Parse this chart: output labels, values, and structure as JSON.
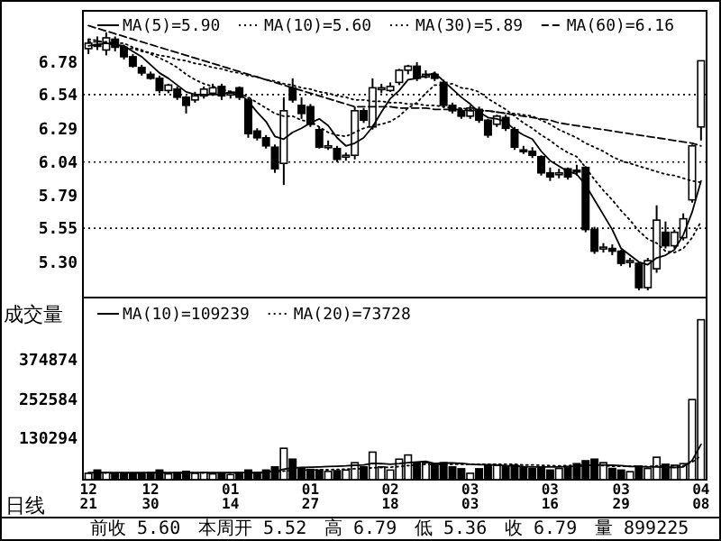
{
  "chart_data": [
    {
      "type": "candlestick",
      "color": "#000000",
      "legend": "top",
      "tick_labels": "y",
      "ylim": [
        5.05,
        7.16
      ],
      "yticks": [
        {
          "value": 5.3,
          "label": "5.30"
        },
        5.55,
        5.79,
        6.04,
        6.29,
        6.54,
        6.78
      ],
      "ref_lines": [
        {
          "axis": "y",
          "value": 6.54,
          "line_style": "dotted",
          "color": "#000000"
        },
        {
          "axis": "y",
          "value": 6.04,
          "line_style": "dotted",
          "color": "#000000"
        },
        {
          "axis": "y",
          "value": 5.55,
          "line_style": "dotted",
          "color": "#000000"
        }
      ],
      "categories": [
        null,
        null,
        null,
        null,
        null,
        null,
        null,
        null,
        null,
        null,
        null,
        null,
        null,
        null,
        null,
        null,
        null,
        null,
        null,
        null,
        null,
        null,
        null,
        null,
        null,
        null,
        null,
        null,
        null,
        null,
        null,
        null,
        null,
        null,
        null,
        null,
        null,
        null,
        null,
        null,
        null,
        null,
        null,
        null,
        null,
        null,
        null,
        null,
        null,
        null,
        null,
        null,
        null,
        null,
        null,
        null,
        null,
        null,
        null,
        null,
        null,
        null,
        null,
        null,
        null,
        null,
        null,
        null,
        null,
        null
      ],
      "ohlc": [
        [
          6.88,
          6.95,
          6.84,
          6.92
        ],
        [
          6.91,
          6.97,
          6.87,
          6.9
        ],
        [
          6.87,
          7.0,
          6.83,
          6.96
        ],
        [
          6.95,
          6.97,
          6.86,
          6.89
        ],
        [
          6.89,
          6.91,
          6.8,
          6.82
        ],
        [
          6.82,
          6.84,
          6.74,
          6.75
        ],
        [
          6.74,
          6.76,
          6.68,
          6.7
        ],
        [
          6.69,
          6.71,
          6.65,
          6.66
        ],
        [
          6.66,
          6.68,
          6.55,
          6.57
        ],
        [
          6.57,
          6.62,
          6.55,
          6.61
        ],
        [
          6.58,
          6.6,
          6.5,
          6.52
        ],
        [
          6.52,
          6.53,
          6.4,
          6.46
        ],
        [
          6.5,
          6.56,
          6.48,
          6.53
        ],
        [
          6.53,
          6.6,
          6.51,
          6.58
        ],
        [
          6.55,
          6.62,
          6.53,
          6.59
        ],
        [
          6.6,
          6.62,
          6.5,
          6.53
        ],
        [
          6.54,
          6.57,
          6.51,
          6.55
        ],
        [
          6.59,
          6.6,
          6.5,
          6.52
        ],
        [
          6.5,
          6.52,
          6.22,
          6.25
        ],
        [
          6.27,
          6.29,
          6.2,
          6.22
        ],
        [
          6.22,
          6.24,
          6.14,
          6.16
        ],
        [
          6.15,
          6.17,
          5.96,
          5.99
        ],
        [
          6.03,
          6.52,
          5.87,
          6.42
        ],
        [
          6.59,
          6.66,
          6.48,
          6.5
        ],
        [
          6.46,
          6.52,
          6.36,
          6.4
        ],
        [
          6.45,
          6.47,
          6.3,
          6.32
        ],
        [
          6.28,
          6.3,
          6.14,
          6.15
        ],
        [
          6.16,
          6.2,
          6.13,
          6.16
        ],
        [
          6.14,
          6.16,
          6.04,
          6.06
        ],
        [
          6.08,
          6.11,
          6.05,
          6.09
        ],
        [
          6.09,
          6.45,
          6.06,
          6.42
        ],
        [
          6.42,
          6.44,
          6.33,
          6.35
        ],
        [
          6.3,
          6.66,
          6.28,
          6.59
        ],
        [
          6.58,
          6.62,
          6.55,
          6.59
        ],
        [
          6.57,
          6.63,
          6.56,
          6.6
        ],
        [
          6.63,
          6.73,
          6.61,
          6.72
        ],
        [
          6.72,
          6.76,
          6.69,
          6.75
        ],
        [
          6.75,
          6.78,
          6.64,
          6.66
        ],
        [
          6.67,
          6.72,
          6.66,
          6.69
        ],
        [
          6.69,
          6.71,
          6.64,
          6.66
        ],
        [
          6.63,
          6.65,
          6.44,
          6.46
        ],
        [
          6.46,
          6.48,
          6.4,
          6.42
        ],
        [
          6.42,
          6.44,
          6.36,
          6.38
        ],
        [
          6.38,
          6.46,
          6.36,
          6.44
        ],
        [
          6.43,
          6.45,
          6.33,
          6.35
        ],
        [
          6.35,
          6.36,
          6.22,
          6.24
        ],
        [
          6.32,
          6.39,
          6.3,
          6.38
        ],
        [
          6.37,
          6.39,
          6.27,
          6.29
        ],
        [
          6.28,
          6.3,
          6.13,
          6.15
        ],
        [
          6.13,
          6.16,
          6.1,
          6.12
        ],
        [
          6.12,
          6.15,
          6.07,
          6.09
        ],
        [
          6.08,
          6.09,
          5.94,
          5.96
        ],
        [
          5.96,
          6.0,
          5.9,
          5.93
        ],
        [
          5.95,
          5.99,
          5.92,
          5.96
        ],
        [
          5.99,
          6.0,
          5.91,
          5.93
        ],
        [
          5.98,
          6.02,
          5.94,
          5.97
        ],
        [
          6.0,
          6.01,
          5.52,
          5.54
        ],
        [
          5.54,
          5.56,
          5.36,
          5.38
        ],
        [
          5.4,
          5.44,
          5.37,
          5.41
        ],
        [
          5.4,
          5.43,
          5.35,
          5.38
        ],
        [
          5.38,
          5.39,
          5.27,
          5.29
        ],
        [
          5.3,
          5.33,
          5.26,
          5.31
        ],
        [
          5.29,
          5.3,
          5.09,
          5.11
        ],
        [
          5.11,
          5.33,
          5.09,
          5.31
        ],
        [
          5.25,
          5.72,
          5.22,
          5.61
        ],
        [
          5.52,
          5.6,
          5.4,
          5.42
        ],
        [
          5.42,
          5.54,
          5.4,
          5.52
        ],
        [
          5.48,
          5.66,
          5.46,
          5.62
        ],
        [
          5.76,
          6.17,
          5.74,
          6.16
        ],
        [
          6.3,
          6.79,
          6.2,
          6.79
        ]
      ],
      "series": [
        {
          "type": "line",
          "name": "MA(5)=5.90",
          "color": "#000000",
          "line_style": "solid",
          "values": [
            6.9,
            6.91,
            6.92,
            6.91,
            6.9,
            6.86,
            6.82,
            6.76,
            6.7,
            6.66,
            6.61,
            6.56,
            6.54,
            6.54,
            6.54,
            6.54,
            6.56,
            6.55,
            6.49,
            6.41,
            6.34,
            6.23,
            6.21,
            6.26,
            6.29,
            6.33,
            6.36,
            6.31,
            6.22,
            6.16,
            6.18,
            6.22,
            6.3,
            6.41,
            6.51,
            6.57,
            6.65,
            6.66,
            6.68,
            6.7,
            6.64,
            6.58,
            6.52,
            6.47,
            6.41,
            6.37,
            6.36,
            6.34,
            6.28,
            6.24,
            6.21,
            6.12,
            6.05,
            6.01,
            5.97,
            5.95,
            5.87,
            5.76,
            5.65,
            5.54,
            5.4,
            5.35,
            5.3,
            5.28,
            5.33,
            5.35,
            5.39,
            5.5,
            5.67,
            5.9
          ]
        },
        {
          "type": "line",
          "name": "MA(10)=5.60",
          "color": "#000000",
          "line_style": "dotted",
          "values": [
            6.93,
            6.93,
            6.93,
            6.92,
            6.92,
            6.89,
            6.87,
            6.84,
            6.81,
            6.78,
            6.74,
            6.69,
            6.65,
            6.62,
            6.6,
            6.58,
            6.56,
            6.55,
            6.52,
            6.48,
            6.44,
            6.4,
            6.38,
            6.38,
            6.35,
            6.34,
            6.3,
            6.26,
            6.24,
            6.23,
            6.26,
            6.29,
            6.31,
            6.32,
            6.34,
            6.38,
            6.44,
            6.48,
            6.55,
            6.61,
            6.61,
            6.62,
            6.59,
            6.58,
            6.56,
            6.51,
            6.47,
            6.43,
            6.38,
            6.33,
            6.29,
            6.24,
            6.2,
            6.15,
            6.11,
            6.08,
            6.0,
            5.91,
            5.83,
            5.76,
            5.68,
            5.61,
            5.53,
            5.47,
            5.44,
            5.38,
            5.37,
            5.4,
            5.48,
            5.6
          ]
        },
        {
          "type": "line",
          "name": "MA(30)=5.89",
          "color": "#000000",
          "line_style": "dotted",
          "values": [
            6.95,
            6.94,
            6.92,
            6.91,
            6.89,
            6.88,
            6.86,
            6.85,
            6.83,
            6.82,
            6.8,
            6.79,
            6.77,
            6.76,
            6.74,
            6.73,
            6.71,
            6.7,
            6.68,
            6.67,
            6.65,
            6.64,
            6.62,
            6.61,
            6.59,
            6.58,
            6.56,
            6.55,
            6.53,
            6.52,
            6.5,
            6.5,
            6.49,
            6.49,
            6.48,
            6.48,
            6.47,
            6.47,
            6.46,
            6.46,
            6.45,
            6.44,
            6.44,
            6.43,
            6.42,
            6.42,
            6.41,
            6.4,
            6.4,
            6.39,
            6.38,
            6.35,
            6.32,
            6.28,
            6.25,
            6.22,
            6.18,
            6.15,
            6.12,
            6.08,
            6.05,
            6.03,
            6.01,
            5.99,
            5.97,
            5.95,
            5.94,
            5.92,
            5.9,
            5.89
          ]
        },
        {
          "type": "line",
          "name": "MA(60)=6.16",
          "color": "#000000",
          "line_style": "dashed",
          "values": [
            7.05,
            7.03,
            7.01,
            6.99,
            6.97,
            6.95,
            6.93,
            6.91,
            6.89,
            6.87,
            6.85,
            6.83,
            6.81,
            6.79,
            6.77,
            6.75,
            6.73,
            6.71,
            6.69,
            6.67,
            6.65,
            6.63,
            6.61,
            6.59,
            6.57,
            6.55,
            6.53,
            6.51,
            6.49,
            6.47,
            6.45,
            6.45,
            6.45,
            6.45,
            6.45,
            6.44,
            6.44,
            6.44,
            6.44,
            6.43,
            6.43,
            6.43,
            6.43,
            6.42,
            6.42,
            6.42,
            6.41,
            6.4,
            6.39,
            6.38,
            6.37,
            6.36,
            6.35,
            6.33,
            6.32,
            6.31,
            6.3,
            6.29,
            6.28,
            6.27,
            6.26,
            6.25,
            6.24,
            6.23,
            6.22,
            6.21,
            6.2,
            6.19,
            6.18,
            6.16
          ]
        }
      ]
    },
    {
      "type": "bar",
      "ylabel": "成交量",
      "legend": "top",
      "ylim": [
        0,
        562600
      ],
      "yticks": [
        130294,
        252584,
        374874
      ],
      "annotations": [
        "日线",
        "前收 5.60",
        "本周开 5.52",
        "高 6.79",
        "低 5.36",
        "收 6.79",
        "量 899225"
      ],
      "categories": [
        "12\n21",
        null,
        null,
        null,
        null,
        null,
        null,
        "12\n30",
        null,
        null,
        null,
        null,
        null,
        null,
        null,
        null,
        "01\n14",
        null,
        null,
        null,
        null,
        null,
        null,
        null,
        null,
        "01\n27",
        null,
        null,
        null,
        null,
        null,
        null,
        null,
        null,
        "02\n18",
        null,
        null,
        null,
        null,
        null,
        null,
        null,
        null,
        "03\n03",
        null,
        null,
        null,
        null,
        null,
        null,
        null,
        null,
        "03\n16",
        null,
        null,
        null,
        null,
        null,
        null,
        null,
        "03\n29",
        null,
        null,
        null,
        null,
        null,
        null,
        null,
        null,
        "04\n08"
      ],
      "values": [
        20000,
        30000,
        22000,
        18000,
        20000,
        18000,
        20000,
        22000,
        30000,
        18000,
        22000,
        26000,
        20000,
        22000,
        18000,
        20000,
        16000,
        22000,
        30000,
        22000,
        30000,
        40000,
        98000,
        64000,
        36000,
        32000,
        30000,
        26000,
        28000,
        30000,
        53000,
        40000,
        86000,
        40000,
        30000,
        64000,
        77000,
        53000,
        53000,
        50000,
        53000,
        40000,
        34000,
        20000,
        34000,
        45000,
        45000,
        40000,
        45000,
        40000,
        35000,
        40000,
        30000,
        35000,
        40000,
        50000,
        59000,
        64000,
        53000,
        35000,
        30000,
        25000,
        42000,
        35000,
        70000,
        48000,
        45000,
        50000,
        250000,
        499000
      ],
      "colors": [
        "#ffffff",
        "#000000",
        "#ffffff",
        "#000000",
        "#000000",
        "#000000",
        "#000000",
        "#000000",
        "#000000",
        "#ffffff",
        "#000000",
        "#000000",
        "#ffffff",
        "#ffffff",
        "#ffffff",
        "#000000",
        "#ffffff",
        "#000000",
        "#000000",
        "#000000",
        "#000000",
        "#000000",
        "#ffffff",
        "#000000",
        "#000000",
        "#000000",
        "#000000",
        "#ffffff",
        "#000000",
        "#ffffff",
        "#ffffff",
        "#000000",
        "#ffffff",
        "#ffffff",
        "#ffffff",
        "#ffffff",
        "#ffffff",
        "#000000",
        "#ffffff",
        "#000000",
        "#000000",
        "#000000",
        "#000000",
        "#ffffff",
        "#000000",
        "#000000",
        "#ffffff",
        "#000000",
        "#000000",
        "#000000",
        "#000000",
        "#000000",
        "#000000",
        "#ffffff",
        "#000000",
        "#000000",
        "#000000",
        "#000000",
        "#ffffff",
        "#000000",
        "#000000",
        "#ffffff",
        "#000000",
        "#ffffff",
        "#ffffff",
        "#000000",
        "#ffffff",
        "#ffffff",
        "#ffffff",
        "#ffffff"
      ],
      "series": [
        {
          "type": "line",
          "name": "MA(10)=109239",
          "color": "#000000",
          "line_style": "solid",
          "values": [
            22000,
            22000,
            22000,
            22000,
            22000,
            22000,
            22000,
            22000,
            22000,
            22000,
            22000,
            22000,
            22000,
            22000,
            22000,
            22000,
            22000,
            22000,
            22000,
            22000,
            24000,
            26000,
            33000,
            37000,
            38000,
            39000,
            40000,
            41000,
            42000,
            43000,
            45000,
            46000,
            51000,
            50000,
            48000,
            50000,
            53000,
            55000,
            57000,
            50000,
            52000,
            52000,
            51000,
            48000,
            47000,
            47000,
            46000,
            44000,
            43000,
            41000,
            40000,
            40000,
            40000,
            40000,
            41000,
            42000,
            44000,
            46000,
            46000,
            45000,
            44000,
            41000,
            41000,
            40000,
            40000,
            39000,
            38000,
            40000,
            60000,
            110000
          ]
        },
        {
          "type": "line",
          "name": "MA(20)=73728",
          "color": "#000000",
          "line_style": "dotted",
          "values": [
            21000,
            21000,
            21000,
            21000,
            21000,
            21000,
            21000,
            21000,
            21000,
            21000,
            21000,
            21000,
            21000,
            21000,
            21000,
            21000,
            21000,
            21000,
            21000,
            21000,
            22000,
            23000,
            27000,
            29000,
            30000,
            30000,
            31000,
            31000,
            32000,
            33000,
            34000,
            34000,
            37000,
            38000,
            39000,
            41000,
            44000,
            46000,
            48000,
            47000,
            48000,
            48000,
            48000,
            48000,
            48000,
            48000,
            48000,
            48000,
            48000,
            46000,
            46000,
            45000,
            44000,
            43000,
            44000,
            45000,
            45000,
            45000,
            44000,
            42000,
            42000,
            42000,
            42000,
            41000,
            43000,
            43000,
            43000,
            43000,
            55000,
            74000
          ]
        }
      ]
    }
  ]
}
